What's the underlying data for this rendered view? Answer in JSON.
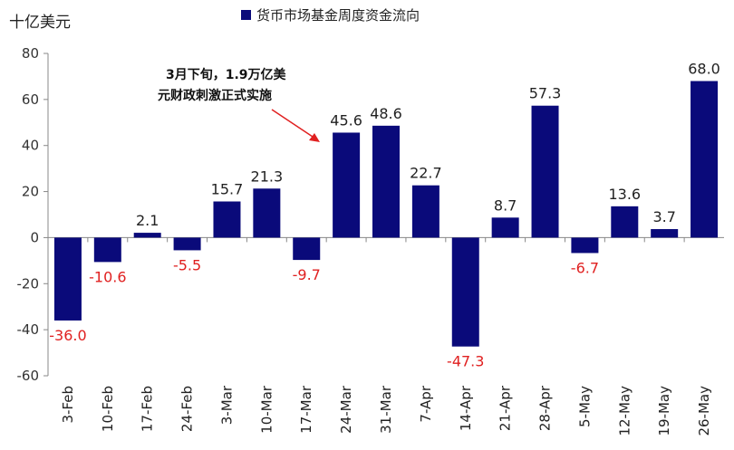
{
  "chart_data": {
    "type": "bar",
    "title": "",
    "unit_label": "十亿美元",
    "xlabel": "",
    "ylabel": "",
    "ylim": [
      -60,
      80
    ],
    "yticks": [
      -60,
      -40,
      -20,
      0,
      20,
      40,
      60,
      80
    ],
    "grid": false,
    "legend_position": "top-center",
    "categories": [
      "3-Feb",
      "10-Feb",
      "17-Feb",
      "24-Feb",
      "3-Mar",
      "10-Mar",
      "17-Mar",
      "24-Mar",
      "31-Mar",
      "7-Apr",
      "14-Apr",
      "21-Apr",
      "28-Apr",
      "5-May",
      "12-May",
      "19-May",
      "26-May"
    ],
    "series": [
      {
        "name": "货币市场基金周度资金流向",
        "color": "#0a0a7a",
        "values": [
          -36.0,
          -10.6,
          2.1,
          -5.5,
          15.7,
          21.3,
          -9.7,
          45.6,
          48.6,
          22.7,
          -47.3,
          8.7,
          57.3,
          -6.7,
          13.6,
          3.7,
          68.0
        ],
        "labels": [
          "-36.0",
          "-10.6",
          "2.1",
          "-5.5",
          "15.7",
          "21.3",
          "-9.7",
          "45.6",
          "48.6",
          "22.7",
          "-47.3",
          "8.7",
          "57.3",
          "-6.7",
          "13.6",
          "3.7",
          "68.0"
        ]
      }
    ],
    "label_colors": {
      "positive": "#222222",
      "negative": "#e02020"
    },
    "annotation": {
      "lines": [
        "3月下旬，1.9万亿美",
        "元财政刺激正式实施"
      ],
      "arrow_color": "#e02020"
    }
  }
}
